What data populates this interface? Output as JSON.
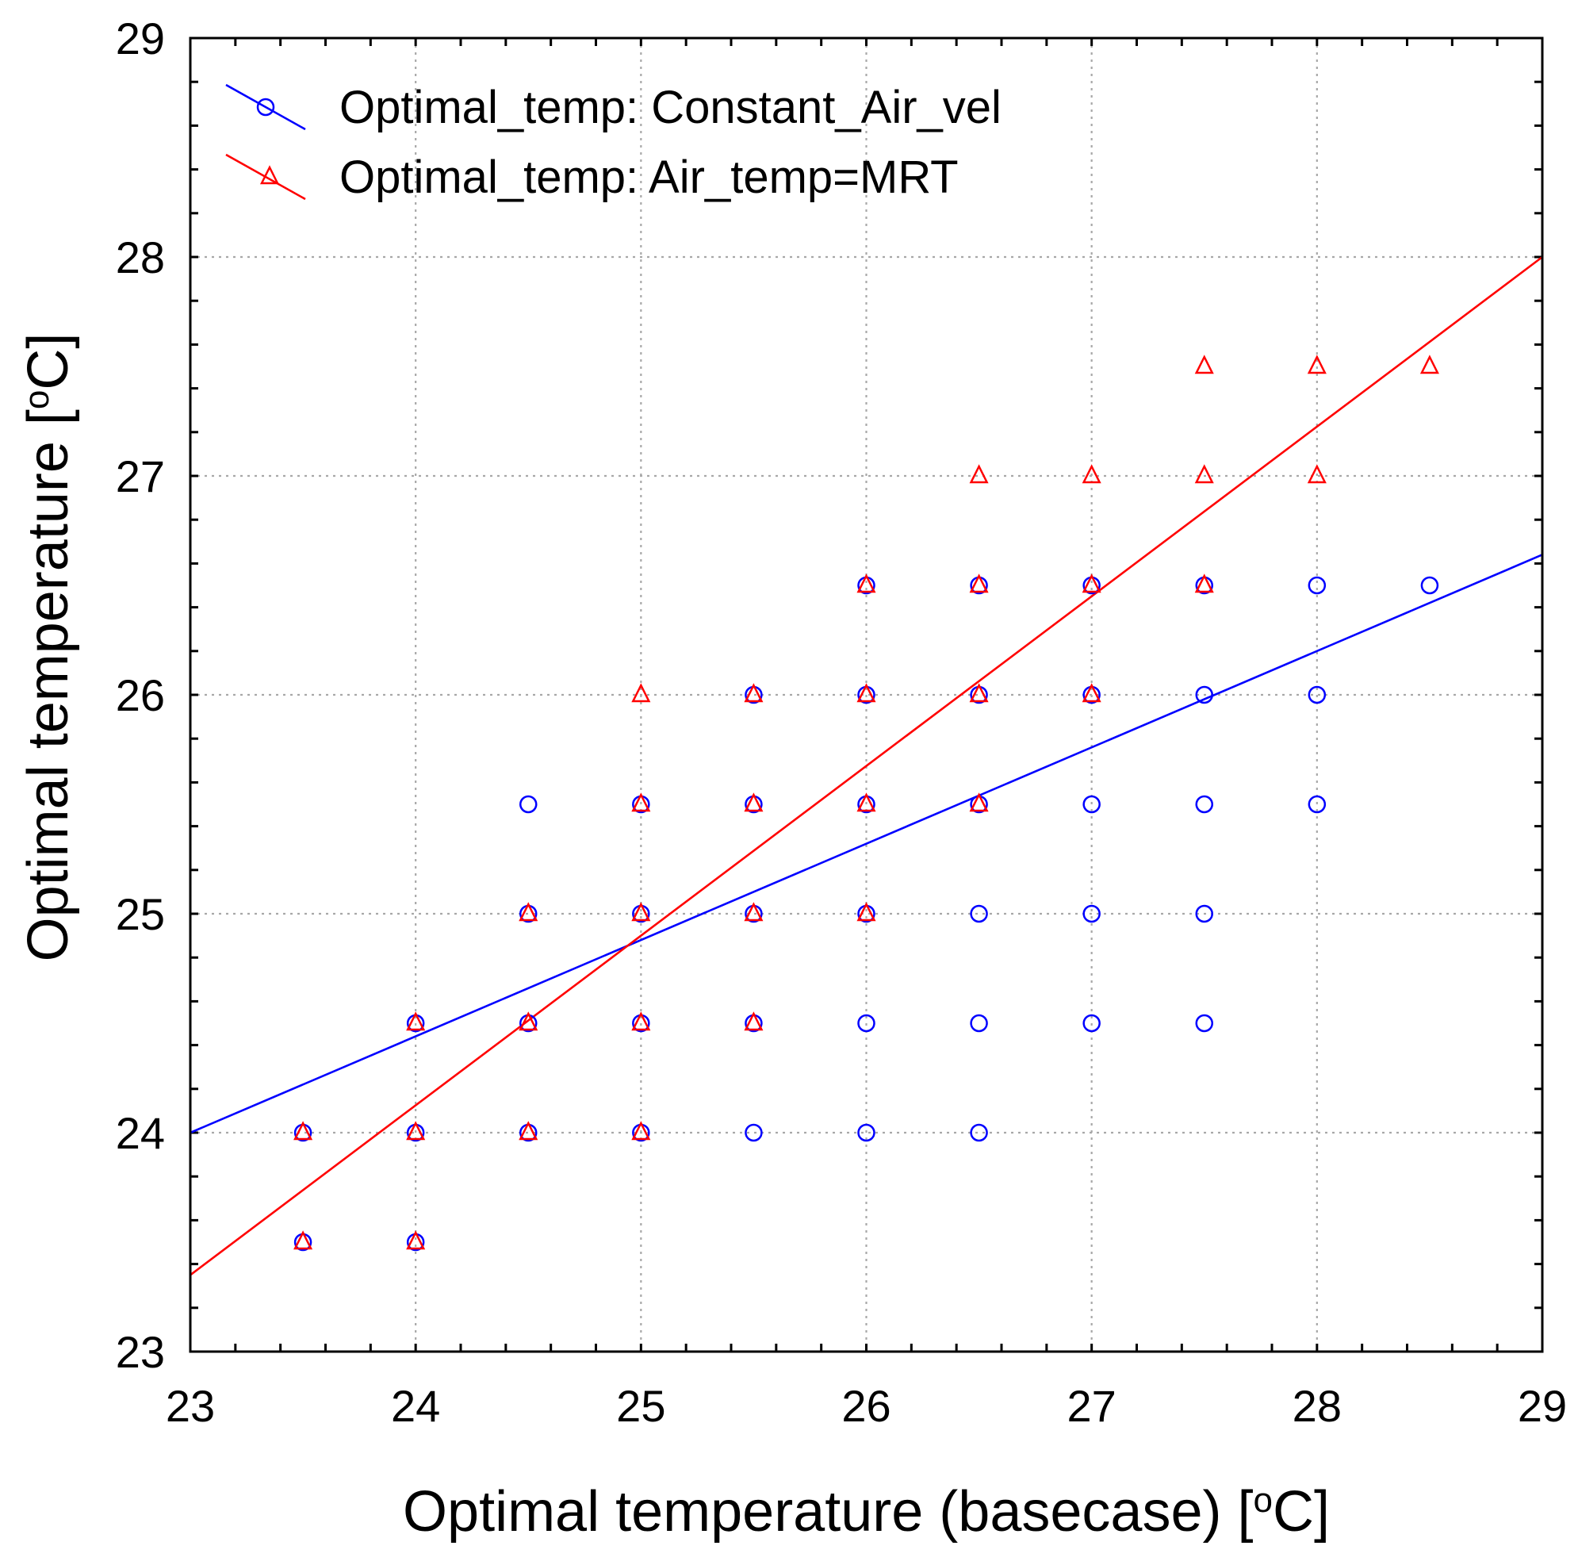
{
  "chart_data": {
    "type": "scatter",
    "title": "",
    "xlabel": "Optimal temperature (basecase) [oC]",
    "ylabel": "Optimal temperature [oC]",
    "xlim": [
      23,
      29
    ],
    "ylim": [
      23,
      29
    ],
    "x_ticks": [
      23,
      24,
      25,
      26,
      27,
      28,
      29
    ],
    "y_ticks": [
      23,
      24,
      25,
      26,
      27,
      28,
      29
    ],
    "x_tick_labels": [
      "23",
      "24",
      "25",
      "26",
      "27",
      "28",
      "29"
    ],
    "y_tick_labels": [
      "23",
      "24",
      "25",
      "26",
      "27",
      "28",
      "29"
    ],
    "minor_tick_step": 0.2,
    "grid": true,
    "legend_position": "top-left",
    "series": [
      {
        "name": "Optimal_temp: Constant_Air_vel",
        "color": "#0000ff",
        "marker": "circle",
        "fit_line": {
          "x": [
            23,
            29
          ],
          "y": [
            24.0,
            26.64
          ]
        },
        "points": [
          [
            23.5,
            23.5
          ],
          [
            24,
            23.5
          ],
          [
            23.5,
            24
          ],
          [
            24,
            24
          ],
          [
            24.5,
            24
          ],
          [
            25,
            24
          ],
          [
            25.5,
            24
          ],
          [
            26,
            24
          ],
          [
            26.5,
            24
          ],
          [
            24,
            24.5
          ],
          [
            24.5,
            24.5
          ],
          [
            25,
            24.5
          ],
          [
            25.5,
            24.5
          ],
          [
            26,
            24.5
          ],
          [
            26.5,
            24.5
          ],
          [
            27,
            24.5
          ],
          [
            27.5,
            24.5
          ],
          [
            24.5,
            25
          ],
          [
            25,
            25
          ],
          [
            25.5,
            25
          ],
          [
            26,
            25
          ],
          [
            26.5,
            25
          ],
          [
            27,
            25
          ],
          [
            27.5,
            25
          ],
          [
            24.5,
            25.5
          ],
          [
            25,
            25.5
          ],
          [
            25.5,
            25.5
          ],
          [
            26,
            25.5
          ],
          [
            26.5,
            25.5
          ],
          [
            27,
            25.5
          ],
          [
            27.5,
            25.5
          ],
          [
            28,
            25.5
          ],
          [
            25.5,
            26
          ],
          [
            26,
            26
          ],
          [
            26.5,
            26
          ],
          [
            27,
            26
          ],
          [
            27.5,
            26
          ],
          [
            28,
            26
          ],
          [
            26,
            26.5
          ],
          [
            26.5,
            26.5
          ],
          [
            27,
            26.5
          ],
          [
            27.5,
            26.5
          ],
          [
            28,
            26.5
          ],
          [
            28.5,
            26.5
          ]
        ]
      },
      {
        "name": "Optimal_temp: Air_temp=MRT",
        "color": "#ff0000",
        "marker": "triangle",
        "fit_line": {
          "x": [
            23,
            29
          ],
          "y": [
            23.35,
            28.0
          ]
        },
        "points": [
          [
            23.5,
            23.5
          ],
          [
            24,
            23.5
          ],
          [
            23.5,
            24
          ],
          [
            24,
            24
          ],
          [
            24.5,
            24
          ],
          [
            25,
            24
          ],
          [
            24,
            24.5
          ],
          [
            24.5,
            24.5
          ],
          [
            25,
            24.5
          ],
          [
            25.5,
            24.5
          ],
          [
            24.5,
            25
          ],
          [
            25,
            25
          ],
          [
            25.5,
            25
          ],
          [
            26,
            25
          ],
          [
            25,
            25.5
          ],
          [
            25.5,
            25.5
          ],
          [
            26,
            25.5
          ],
          [
            26.5,
            25.5
          ],
          [
            25,
            26
          ],
          [
            25.5,
            26
          ],
          [
            26,
            26
          ],
          [
            26.5,
            26
          ],
          [
            27,
            26
          ],
          [
            26,
            26.5
          ],
          [
            26.5,
            26.5
          ],
          [
            27,
            26.5
          ],
          [
            27.5,
            26.5
          ],
          [
            26.5,
            27
          ],
          [
            27,
            27
          ],
          [
            27.5,
            27
          ],
          [
            28,
            27
          ],
          [
            27.5,
            27.5
          ],
          [
            28,
            27.5
          ],
          [
            28.5,
            27.5
          ]
        ]
      }
    ]
  }
}
